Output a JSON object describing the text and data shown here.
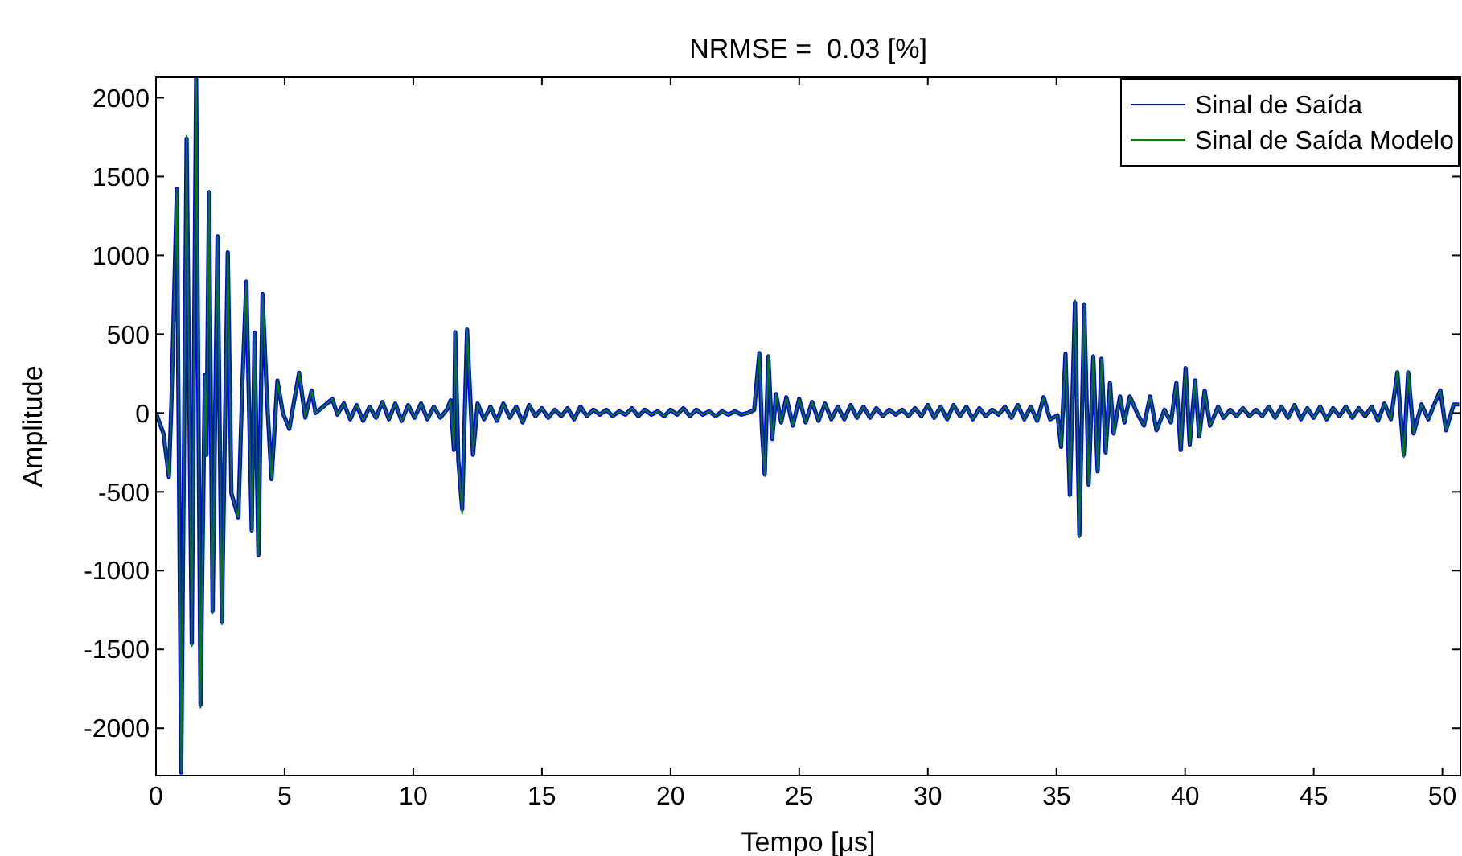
{
  "chart_data": {
    "type": "line",
    "title": "NRMSE =  0.03 [%]",
    "xlabel": "Tempo [μs]",
    "ylabel": "Amplitude",
    "xlim": [
      0,
      50.7
    ],
    "ylim": [
      -2300,
      2130
    ],
    "xticks": [
      0,
      5,
      10,
      15,
      20,
      25,
      30,
      35,
      40,
      45,
      50
    ],
    "yticks": [
      -2000,
      -1500,
      -1000,
      -500,
      0,
      500,
      1000,
      1500,
      2000
    ],
    "grid": false,
    "legend": "top right",
    "marker": "none",
    "line_style": "solid",
    "x": [
      0,
      0.29,
      0.5,
      0.6,
      0.81,
      0.98,
      1.19,
      1.39,
      1.56,
      1.73,
      1.9,
      1.96,
      2.06,
      2.2,
      2.39,
      2.56,
      2.79,
      2.93,
      3.2,
      3.35,
      3.51,
      3.72,
      3.83,
      3.98,
      4.14,
      4.31,
      4.49,
      4.72,
      4.93,
      5.18,
      5.56,
      5.8,
      6.05,
      6.2,
      6.5,
      6.85,
      7.05,
      7.3,
      7.55,
      7.8,
      8.05,
      8.3,
      8.55,
      8.8,
      9.05,
      9.3,
      9.55,
      9.8,
      10.05,
      10.3,
      10.55,
      10.8,
      11.05,
      11.3,
      11.45,
      11.58,
      11.63,
      11.75,
      11.9,
      12.09,
      12.32,
      12.5,
      12.75,
      13,
      13.25,
      13.5,
      13.75,
      14,
      14.25,
      14.5,
      14.75,
      15,
      15.25,
      15.5,
      15.75,
      16,
      16.25,
      16.5,
      16.75,
      17,
      17.25,
      17.5,
      17.75,
      18,
      18.25,
      18.5,
      18.75,
      19,
      19.25,
      19.5,
      19.75,
      20,
      20.25,
      20.5,
      20.75,
      21,
      21.25,
      21.5,
      21.75,
      22,
      22.25,
      22.5,
      22.75,
      23,
      23.25,
      23.45,
      23.55,
      23.66,
      23.8,
      23.95,
      24.1,
      24.3,
      24.5,
      24.75,
      25,
      25.25,
      25.5,
      25.75,
      26,
      26.25,
      26.5,
      26.75,
      27,
      27.25,
      27.5,
      27.75,
      28,
      28.25,
      28.5,
      28.75,
      29,
      29.25,
      29.5,
      29.75,
      30,
      30.25,
      30.5,
      30.75,
      31,
      31.25,
      31.5,
      31.75,
      32,
      32.25,
      32.5,
      32.75,
      33,
      33.25,
      33.5,
      33.75,
      34,
      34.25,
      34.5,
      34.75,
      35.04,
      35.18,
      35.35,
      35.52,
      35.72,
      35.89,
      36.08,
      36.25,
      36.43,
      36.6,
      36.75,
      36.91,
      37.08,
      37.22,
      37.47,
      37.64,
      37.85,
      38.16,
      38.4,
      38.64,
      38.89,
      39.2,
      39.45,
      39.66,
      39.83,
      40.02,
      40.18,
      40.39,
      40.55,
      40.76,
      40.97,
      41.28,
      41.5,
      41.75,
      42,
      42.25,
      42.5,
      42.75,
      43,
      43.25,
      43.5,
      43.75,
      44,
      44.25,
      44.5,
      44.75,
      45,
      45.25,
      45.5,
      45.75,
      46,
      46.25,
      46.5,
      46.75,
      47,
      47.25,
      47.5,
      47.75,
      48,
      48.25,
      48.5,
      48.67,
      48.88,
      49.19,
      49.45,
      49.7,
      49.92,
      50.14,
      50.44,
      50.65
    ],
    "series": [
      {
        "name": "Sinal de Saída",
        "color": "#0000ff",
        "values": [
          0,
          -130,
          -405,
          70,
          1420,
          -2280,
          1740,
          -1460,
          2120,
          -1850,
          240,
          -265,
          1400,
          -1255,
          1120,
          -1325,
          1020,
          -510,
          -663,
          153,
          835,
          -745,
          510,
          -900,
          755,
          100,
          -420,
          205,
          0,
          -100,
          255,
          -30,
          143,
          0,
          40,
          90,
          -10,
          60,
          -40,
          50,
          -50,
          40,
          -30,
          70,
          -40,
          60,
          -50,
          50,
          -30,
          60,
          -40,
          40,
          -30,
          20,
          80,
          -235,
          513,
          -300,
          -610,
          530,
          -265,
          60,
          -40,
          40,
          -50,
          60,
          -30,
          40,
          -60,
          50,
          -20,
          30,
          -30,
          20,
          -20,
          30,
          -40,
          40,
          -20,
          20,
          -10,
          20,
          -20,
          10,
          -10,
          30,
          -20,
          20,
          -10,
          10,
          -20,
          20,
          -10,
          30,
          -20,
          20,
          -10,
          10,
          -20,
          10,
          -10,
          10,
          -10,
          0,
          20,
          380,
          -100,
          -390,
          360,
          -165,
          120,
          -60,
          100,
          -80,
          90,
          -60,
          70,
          -50,
          60,
          -40,
          40,
          -40,
          50,
          -30,
          40,
          -30,
          30,
          -20,
          20,
          -10,
          20,
          -20,
          30,
          -20,
          50,
          -30,
          40,
          -40,
          50,
          -20,
          40,
          -40,
          30,
          -20,
          20,
          -10,
          40,
          -30,
          50,
          -40,
          40,
          -50,
          100,
          -40,
          -15,
          -215,
          375,
          -520,
          700,
          -775,
          685,
          -455,
          360,
          -370,
          345,
          -250,
          190,
          -130,
          105,
          -60,
          105,
          -10,
          -80,
          105,
          -110,
          20,
          -60,
          190,
          -235,
          285,
          -200,
          207,
          -150,
          143,
          -80,
          40,
          -30,
          20,
          -20,
          30,
          -20,
          20,
          -20,
          40,
          -30,
          40,
          -30,
          50,
          -40,
          30,
          -30,
          40,
          -40,
          30,
          -20,
          40,
          -30,
          30,
          -20,
          40,
          -50,
          60,
          -40,
          258,
          -265,
          258,
          -130,
          54,
          -40,
          60,
          143,
          -110,
          54,
          54
        ]
      },
      {
        "name": "Sinal de Saída Modelo",
        "color": "#008000",
        "values": [
          0,
          -130,
          -405,
          70,
          1420,
          -2280,
          1760,
          -1480,
          2125,
          -1870,
          240,
          -265,
          1410,
          -1270,
          1120,
          -1340,
          1020,
          -510,
          -663,
          153,
          840,
          -750,
          510,
          -905,
          755,
          100,
          -420,
          205,
          0,
          -100,
          255,
          -30,
          143,
          0,
          40,
          90,
          -10,
          60,
          -40,
          50,
          -50,
          40,
          -30,
          70,
          -40,
          60,
          -50,
          50,
          -30,
          60,
          -40,
          40,
          -30,
          20,
          80,
          -235,
          520,
          -300,
          -640,
          540,
          -265,
          60,
          -40,
          40,
          -50,
          60,
          -30,
          40,
          -60,
          50,
          -20,
          30,
          -30,
          20,
          -20,
          30,
          -40,
          40,
          -20,
          20,
          -10,
          20,
          -20,
          10,
          -10,
          30,
          -20,
          20,
          -10,
          10,
          -20,
          20,
          -10,
          30,
          -20,
          20,
          -10,
          10,
          -20,
          10,
          -10,
          10,
          -10,
          0,
          20,
          385,
          -100,
          -400,
          365,
          -165,
          120,
          -60,
          100,
          -80,
          90,
          -60,
          70,
          -50,
          60,
          -40,
          40,
          -40,
          50,
          -30,
          40,
          -30,
          30,
          -20,
          20,
          -10,
          20,
          -20,
          30,
          -20,
          50,
          -30,
          40,
          -40,
          50,
          -20,
          40,
          -40,
          30,
          -20,
          20,
          -10,
          40,
          -30,
          50,
          -40,
          40,
          -50,
          100,
          -40,
          -15,
          -215,
          375,
          -530,
          715,
          -790,
          690,
          -455,
          360,
          -375,
          345,
          -250,
          190,
          -130,
          105,
          -60,
          105,
          -10,
          -80,
          105,
          -110,
          20,
          -60,
          195,
          -235,
          290,
          -200,
          207,
          -150,
          143,
          -80,
          40,
          -30,
          20,
          -20,
          30,
          -20,
          20,
          -20,
          40,
          -30,
          40,
          -30,
          50,
          -40,
          30,
          -30,
          40,
          -40,
          30,
          -20,
          40,
          -30,
          30,
          -20,
          40,
          -50,
          60,
          -40,
          265,
          -280,
          265,
          -130,
          54,
          -40,
          60,
          143,
          -110,
          54,
          54
        ]
      }
    ]
  }
}
